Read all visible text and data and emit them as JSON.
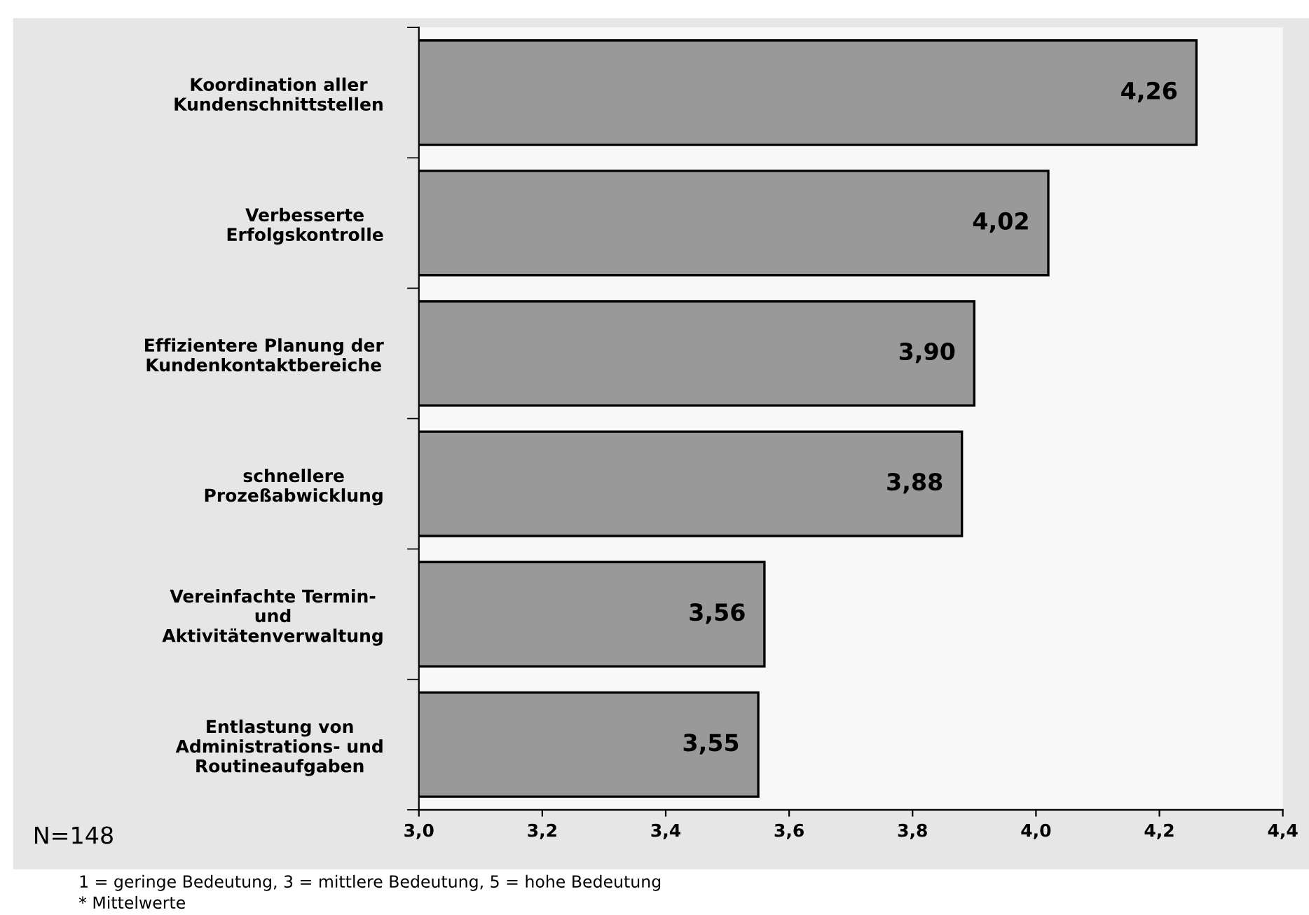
{
  "chart_data": {
    "type": "bar",
    "orientation": "horizontal",
    "categories": [
      "Koordination aller\nKundenschnittstellen",
      "Verbesserte\nErfolgskontrolle",
      "Effizientere Planung der\nKundenkontaktbereiche",
      "schnellere\nProzeßabwicklung",
      "Vereinfachte Termin-\nund\nAktivitätenverwaltung",
      "Entlastung von\nAdministrations- und\nRoutineaufgaben"
    ],
    "values": [
      4.26,
      4.02,
      3.9,
      3.88,
      3.56,
      3.55
    ],
    "value_labels": [
      "4,26",
      "4,02",
      "3,90",
      "3,88",
      "3,56",
      "3,55"
    ],
    "color": "#999999",
    "xlim": [
      3.0,
      4.4
    ],
    "xticks": [
      {
        "value": 3.0,
        "label": "3,0"
      },
      {
        "value": 3.2,
        "label": "3,2"
      },
      {
        "value": 3.4,
        "label": "3,4"
      },
      {
        "value": 3.6,
        "label": "3,6"
      },
      {
        "value": 3.8,
        "label": "3,8"
      },
      {
        "value": 4.0,
        "label": "4,0"
      },
      {
        "value": 4.2,
        "label": "4,2"
      },
      {
        "value": 4.4,
        "label": "4,4"
      }
    ],
    "grid": false,
    "annotations": [
      "N=148",
      "1 = geringe Bedeutung, 3 = mittlere Bedeutung, 5 = hohe Bedeutung",
      "* Mittelwerte"
    ]
  }
}
